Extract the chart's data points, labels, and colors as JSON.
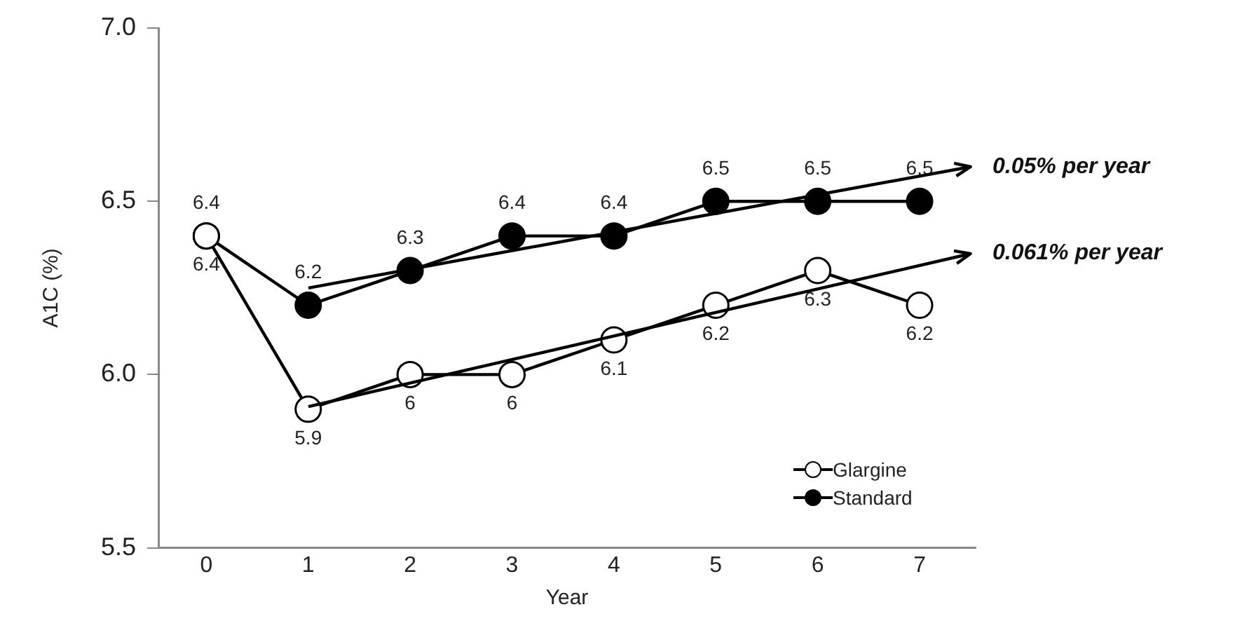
{
  "chart_data": {
    "type": "line",
    "xlabel": "Year",
    "ylabel": "A1C (%)",
    "x": [
      0,
      1,
      2,
      3,
      4,
      5,
      6,
      7
    ],
    "xlim": [
      -0.47,
      7.55
    ],
    "xticks": [
      0,
      1,
      2,
      3,
      4,
      5,
      6,
      7
    ],
    "ylim": [
      5.5,
      7.0
    ],
    "yticks": [
      5.5,
      {
        "value": 6,
        "label": "6.0"
      },
      6.5,
      {
        "value": 7,
        "label": "7.0"
      }
    ],
    "series": [
      {
        "name": "Glargine",
        "color": "#ffffff",
        "values": [
          6.4,
          5.9,
          6,
          6,
          6.1,
          6.2,
          6.3,
          6.2
        ],
        "value_labels": [
          "6.4",
          "5.9",
          "6",
          "6",
          "6.1",
          "6.2",
          "6.3",
          "6.2"
        ]
      },
      {
        "name": "Standard",
        "color": "#000000",
        "values": [
          6.4,
          6.2,
          6.3,
          6.4,
          6.4,
          6.5,
          6.5,
          6.5
        ],
        "value_labels": [
          "6.4",
          "6.2",
          "6.3",
          "6.4",
          "6.4",
          "6.5",
          "6.5",
          "6.5"
        ]
      }
    ],
    "annotations": [
      "0.05% per year",
      "0.061% per year"
    ],
    "marker": "circle",
    "legend": "bottom right",
    "grid": false
  }
}
